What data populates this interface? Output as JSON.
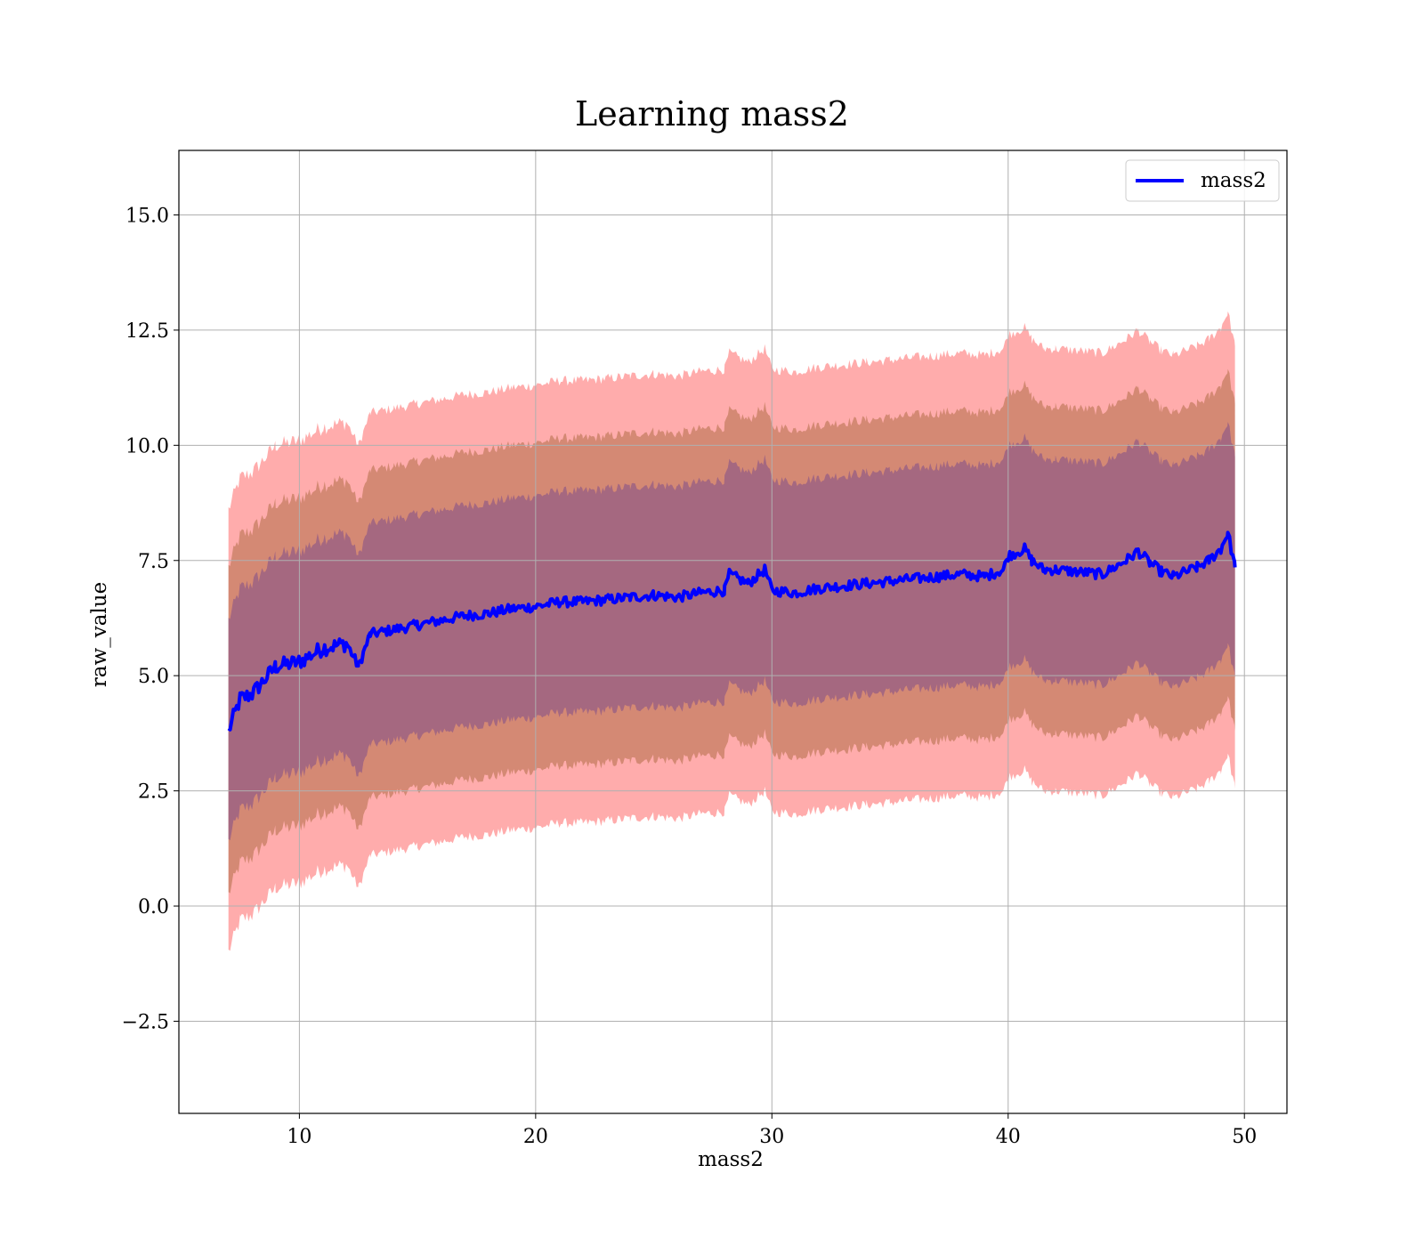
{
  "chart_data": {
    "type": "line",
    "title": "Learning mass2",
    "xlabel": "mass2",
    "ylabel": "raw_value",
    "xlim": [
      4.9,
      51.8
    ],
    "ylim": [
      -4.5,
      16.4
    ],
    "xticks": [
      10,
      20,
      30,
      40,
      50
    ],
    "yticks": [
      -2.5,
      0.0,
      2.5,
      5.0,
      7.5,
      10.0,
      12.5,
      15.0
    ],
    "xtick_labels": [
      "10",
      "20",
      "30",
      "40",
      "50"
    ],
    "ytick_labels": [
      "−2.5",
      "0.0",
      "2.5",
      "5.0",
      "7.5",
      "10.0",
      "12.5",
      "15.0"
    ],
    "grid": true,
    "legend": {
      "position": "upper right",
      "entries": [
        "mass2"
      ]
    },
    "series": [
      {
        "name": "mass2",
        "color": "#0000ff",
        "x": [
          7.0,
          7.5,
          8.0,
          9.0,
          10.0,
          11.0,
          12.0,
          12.5,
          13.0,
          14.0,
          15.0,
          16.0,
          17.0,
          18.0,
          19.0,
          20.0,
          21.0,
          22.0,
          23.0,
          24.0,
          25.0,
          26.0,
          27.0,
          28.0,
          28.2,
          29.0,
          29.7,
          30.0,
          31.0,
          32.0,
          33.0,
          34.0,
          35.0,
          36.0,
          37.0,
          38.0,
          39.0,
          39.8,
          40.0,
          40.7,
          41.0,
          41.5,
          42.0,
          43.0,
          44.0,
          45.0,
          45.5,
          46.0,
          46.5,
          47.0,
          48.0,
          48.5,
          49.0,
          49.3,
          49.6
        ],
        "values": [
          3.8,
          4.5,
          4.6,
          5.2,
          5.3,
          5.6,
          5.7,
          5.2,
          5.9,
          6.0,
          6.1,
          6.2,
          6.3,
          6.35,
          6.45,
          6.5,
          6.6,
          6.6,
          6.65,
          6.7,
          6.75,
          6.7,
          6.8,
          6.85,
          7.2,
          7.0,
          7.3,
          6.85,
          6.8,
          6.9,
          6.95,
          7.0,
          7.05,
          7.1,
          7.15,
          7.2,
          7.15,
          7.3,
          7.6,
          7.75,
          7.5,
          7.3,
          7.3,
          7.25,
          7.2,
          7.5,
          7.7,
          7.45,
          7.25,
          7.15,
          7.35,
          7.5,
          7.75,
          8.1,
          7.35
        ]
      }
    ],
    "bands": [
      {
        "name": "outer",
        "color": "#ff7f7f",
        "opacity": 0.65,
        "offset": 4.8
      },
      {
        "name": "middle",
        "color": "#a06030",
        "opacity": 0.45,
        "offset": 3.55
      },
      {
        "name": "inner",
        "color": "#6b2bb0",
        "opacity": 0.4,
        "offset": 2.4
      }
    ],
    "core_fill": "#a06e78"
  }
}
